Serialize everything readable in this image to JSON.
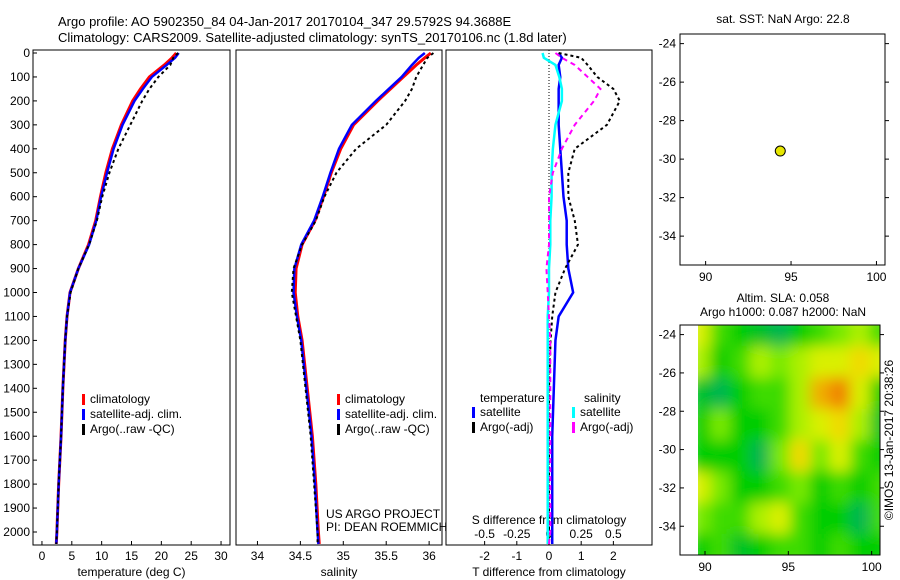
{
  "title_line1": "Argo profile: AO 5902350_84 04-Jan-2017 20170104_347 29.5792S 94.3688E",
  "title_line2": "Climatology: CARS2009. Satellite-adjusted climatology: synTS_20170106.nc (1.8d later)",
  "colors": {
    "clim": "#ff0000",
    "sat": "#0000ff",
    "argo": "#000000",
    "ssat": "#00ffff",
    "sargo": "#ff00ff"
  },
  "chart_data": [
    {
      "type": "line",
      "name": "temperature",
      "xlabel": "temperature (deg C)",
      "ylabel": "",
      "xlim": [
        -1.5,
        31.5
      ],
      "ylim": [
        2050,
        0
      ],
      "xticks": [
        0,
        5,
        10,
        15,
        20,
        25,
        30
      ],
      "yticks": [
        0,
        100,
        200,
        300,
        400,
        500,
        600,
        700,
        800,
        900,
        1000,
        1100,
        1200,
        1300,
        1400,
        1500,
        1600,
        1700,
        1800,
        1900,
        2000
      ],
      "legend": [
        "climatology",
        "satellite-adj. clim.",
        "Argo(..raw -QC)"
      ],
      "depth": [
        0,
        20,
        50,
        100,
        150,
        200,
        300,
        400,
        500,
        600,
        700,
        800,
        900,
        1000,
        1100,
        1200,
        1400,
        1600,
        1800,
        2000,
        2050
      ],
      "series": [
        {
          "name": "climatology",
          "style": "clim",
          "values": [
            22.5,
            21.8,
            20.5,
            18.0,
            16.5,
            15.2,
            13.3,
            11.8,
            10.7,
            9.8,
            9.0,
            7.8,
            6.1,
            4.7,
            4.2,
            3.9,
            3.5,
            3.2,
            2.8,
            2.5,
            2.4
          ]
        },
        {
          "name": "satellite-adj. clim.",
          "style": "sat",
          "values": [
            22.9,
            22.3,
            20.9,
            18.4,
            16.9,
            15.5,
            13.5,
            12.0,
            10.9,
            9.9,
            9.1,
            7.9,
            6.1,
            4.7,
            4.2,
            3.9,
            3.5,
            3.2,
            2.8,
            2.5,
            2.4
          ]
        },
        {
          "name": "Argo(..raw -QC)",
          "style": "argo",
          "values": [
            22.8,
            22.0,
            21.5,
            19.5,
            18.0,
            16.8,
            14.8,
            12.8,
            11.3,
            10.1,
            9.2,
            7.9,
            6.1,
            4.8,
            4.2,
            3.9,
            3.5,
            3.2,
            2.8,
            2.5,
            2.4
          ]
        }
      ]
    },
    {
      "type": "line",
      "name": "salinity",
      "xlabel": "salinity",
      "xlim": [
        33.75,
        36.15
      ],
      "ylim": [
        2050,
        0
      ],
      "xticks": [
        34,
        34.5,
        35,
        35.5,
        36
      ],
      "xticklabels": [
        "34",
        "34.5",
        "35",
        "35.5",
        "36"
      ],
      "legend": [
        "climatology",
        "satellite-adj. clim.",
        "Argo(..raw -QC)"
      ],
      "credit1": "US ARGO PROJECT",
      "credit2": "PI: DEAN ROEMMICH",
      "depth": [
        0,
        20,
        50,
        100,
        150,
        200,
        300,
        400,
        500,
        600,
        700,
        800,
        900,
        1000,
        1100,
        1200,
        1400,
        1600,
        1800,
        2000,
        2050
      ],
      "series": [
        {
          "name": "climatology",
          "style": "clim",
          "values": [
            36.02,
            35.95,
            35.85,
            35.7,
            35.55,
            35.4,
            35.12,
            34.97,
            34.86,
            34.77,
            34.67,
            34.52,
            34.45,
            34.44,
            34.47,
            34.52,
            34.58,
            34.64,
            34.68,
            34.71,
            34.72
          ]
        },
        {
          "name": "satellite-adj. clim.",
          "style": "sat",
          "values": [
            35.95,
            35.88,
            35.8,
            35.68,
            35.53,
            35.38,
            35.1,
            34.95,
            34.85,
            34.76,
            34.66,
            34.51,
            34.43,
            34.42,
            34.46,
            34.51,
            34.57,
            34.63,
            34.67,
            34.7,
            34.71
          ]
        },
        {
          "name": "Argo(..raw -QC)",
          "style": "argo",
          "values": [
            36.05,
            35.98,
            35.93,
            35.85,
            35.8,
            35.72,
            35.5,
            35.15,
            34.92,
            34.78,
            34.68,
            34.52,
            34.42,
            34.4,
            34.45,
            34.5,
            34.56,
            34.62,
            34.66,
            34.7,
            34.7
          ]
        }
      ]
    },
    {
      "type": "line",
      "name": "differences",
      "xlabel": "T difference from climatology",
      "x2label": "S difference from climatology",
      "xlim": [
        -3.2,
        3.2
      ],
      "x2lim": [
        -0.8,
        0.8
      ],
      "ylim": [
        2050,
        0
      ],
      "xticks": [
        -2,
        -1,
        0,
        1,
        2
      ],
      "x2ticks": [
        -0.5,
        -0.25,
        0,
        0.25,
        0.5
      ],
      "legend_title_t": "temperature",
      "legend_title_s": "salinity",
      "legend": [
        "satellite",
        "Argo(-adj)",
        "satellite",
        "Argo(-adj)"
      ],
      "depth": [
        0,
        20,
        50,
        100,
        150,
        200,
        300,
        400,
        500,
        600,
        700,
        800,
        900,
        1000,
        1100,
        1200,
        1400,
        1600,
        1800,
        2000,
        2050
      ],
      "series": [
        {
          "name": "T satellite",
          "style": "sat",
          "axis": "t",
          "values": [
            0.3,
            0.4,
            0.3,
            0.35,
            0.3,
            0.3,
            0.3,
            0.35,
            0.4,
            0.45,
            0.55,
            0.55,
            0.6,
            0.75,
            0.3,
            0.2,
            0.15,
            0.1,
            0.1,
            0.1,
            0.1
          ]
        },
        {
          "name": "T Argo(-adj)",
          "style": "argo",
          "axis": "t",
          "values": [
            0.3,
            1.0,
            1.2,
            1.5,
            2.0,
            2.2,
            1.8,
            0.8,
            0.6,
            0.6,
            0.8,
            0.9,
            0.5,
            0.2,
            0.1,
            0.05,
            0.0,
            0.0,
            0.0,
            0.0,
            0.0
          ]
        },
        {
          "name": "S satellite",
          "style": "ssat",
          "axis": "s",
          "values": [
            -0.05,
            -0.04,
            0.05,
            0.08,
            0.1,
            0.1,
            0.05,
            0.03,
            0.02,
            0.02,
            0.01,
            0.01,
            0.0,
            0.0,
            -0.01,
            -0.01,
            -0.01,
            -0.01,
            -0.01,
            -0.01,
            -0.01
          ]
        },
        {
          "name": "S Argo(-adj)",
          "style": "sargo",
          "axis": "s",
          "values": [
            0.05,
            0.1,
            0.2,
            0.3,
            0.4,
            0.35,
            0.2,
            0.1,
            0.03,
            0.0,
            0.0,
            0.0,
            -0.02,
            -0.01,
            0.0,
            0.01,
            0.01,
            0.01,
            0.01,
            0.01,
            0.0
          ]
        }
      ]
    },
    {
      "type": "scatter",
      "name": "location-map",
      "title": "sat. SST: NaN Argo: 22.8",
      "xlim": [
        88.5,
        100.5
      ],
      "ylim": [
        -35.5,
        -23.5
      ],
      "xticks": [
        90,
        95,
        100
      ],
      "yticks": [
        -24,
        -26,
        -28,
        -30,
        -32,
        -34
      ],
      "points": [
        {
          "lon": 94.37,
          "lat": -29.58
        }
      ]
    },
    {
      "type": "heatmap",
      "name": "sla-map",
      "title1": "Altim. SLA: 0.058",
      "title2": "Argo h1000: 0.087 h2000: NaN",
      "xlim": [
        88.5,
        100.5
      ],
      "ylim": [
        -35.5,
        -23.5
      ],
      "xticks": [
        90,
        95,
        100
      ],
      "yticks": [
        -24,
        -26,
        -28,
        -30,
        -32,
        -34
      ],
      "stamp": "©IMOS 13-Jan-2017 20:38:26",
      "grid": [
        [
          0.7,
          0.4,
          0.3,
          0.2,
          0.1,
          0.3,
          0.4,
          0.5,
          0.6,
          0.4
        ],
        [
          0.6,
          0.3,
          0.4,
          0.6,
          0.5,
          0.6,
          0.7,
          0.7,
          0.8,
          0.7
        ],
        [
          0.2,
          0.1,
          0.3,
          0.4,
          0.4,
          0.6,
          0.9,
          1.0,
          0.7,
          0.3
        ],
        [
          0.3,
          0.5,
          0.3,
          0.3,
          0.4,
          0.6,
          0.7,
          0.8,
          0.6,
          0.2
        ],
        [
          0.3,
          0.3,
          0.3,
          0.1,
          0.5,
          0.8,
          0.5,
          0.7,
          0.4,
          0.3
        ],
        [
          0.7,
          0.5,
          0.3,
          0.3,
          0.4,
          0.5,
          0.3,
          0.4,
          0.3,
          0.4
        ],
        [
          0.5,
          0.4,
          0.4,
          0.6,
          0.7,
          0.4,
          0.3,
          0.3,
          0.1,
          0.4
        ],
        [
          0.3,
          0.4,
          0.2,
          0.3,
          0.4,
          0.4,
          0.3,
          0.4,
          0.3,
          0.3
        ]
      ]
    }
  ]
}
